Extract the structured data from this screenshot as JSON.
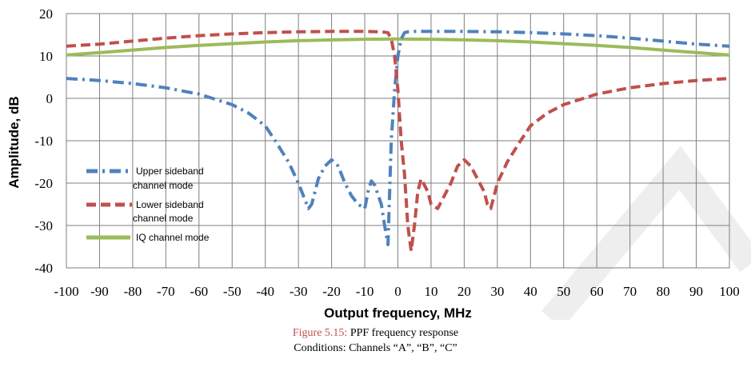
{
  "chart_data": {
    "type": "line",
    "xlabel": "Output frequency, MHz",
    "ylabel": "Amplitude, dB",
    "xlim": [
      -100,
      100
    ],
    "ylim": [
      -40,
      20
    ],
    "xticks": [
      -100,
      -90,
      -80,
      -70,
      -60,
      -50,
      -40,
      -30,
      -20,
      -10,
      0,
      10,
      20,
      30,
      40,
      50,
      60,
      70,
      80,
      90,
      100
    ],
    "yticks": [
      -40,
      -30,
      -20,
      -10,
      0,
      10,
      20
    ],
    "grid": true,
    "legend_position": "bottom-left",
    "series": [
      {
        "name": "Upper sideband channel mode",
        "color": "#4f81bd",
        "dash": "dash-dot",
        "x": [
          -100,
          -90,
          -80,
          -70,
          -60,
          -50,
          -45,
          -40,
          -37,
          -33,
          -30,
          -28,
          -27,
          -26,
          -25,
          -24,
          -22,
          -20,
          -18,
          -16,
          -14,
          -12,
          -10,
          -9,
          -8,
          -7,
          -5,
          -4,
          -3,
          -2,
          -1,
          0,
          1,
          2,
          3,
          5,
          10,
          20,
          30,
          40,
          50,
          60,
          70,
          80,
          90,
          100
        ],
        "y": [
          4.7,
          4.2,
          3.5,
          2.5,
          1,
          -1.5,
          -3.5,
          -6.5,
          -10,
          -15,
          -20,
          -24,
          -26,
          -25,
          -22,
          -19,
          -16,
          -14.5,
          -16,
          -20,
          -23,
          -25,
          -26,
          -22,
          -19.5,
          -20.5,
          -25,
          -30,
          -34.5,
          -10,
          2,
          10,
          14,
          15.5,
          15.7,
          15.8,
          15.8,
          15.8,
          15.7,
          15.5,
          15.2,
          14.8,
          14.2,
          13.5,
          12.8,
          12.3
        ]
      },
      {
        "name": "Lower sideband channel mode",
        "color": "#c0504d",
        "dash": "dash",
        "x": [
          -100,
          -90,
          -80,
          -70,
          -60,
          -50,
          -40,
          -30,
          -20,
          -10,
          -5,
          -3,
          -2,
          -1,
          0,
          1,
          2,
          3,
          4,
          5,
          6,
          7,
          8,
          9,
          10,
          12,
          14,
          16,
          18,
          20,
          22,
          24,
          26,
          27,
          28,
          30,
          33,
          37,
          40,
          45,
          50,
          60,
          70,
          80,
          90,
          100
        ],
        "y": [
          12.3,
          12.8,
          13.5,
          14.2,
          14.8,
          15.2,
          15.5,
          15.7,
          15.8,
          15.8,
          15.7,
          15.5,
          14,
          10,
          2,
          -10,
          -18,
          -30,
          -36,
          -30,
          -22,
          -19,
          -20.5,
          -22,
          -25,
          -26,
          -23,
          -20,
          -16,
          -14.5,
          -16,
          -19,
          -22,
          -25,
          -26,
          -20,
          -15,
          -10,
          -6.5,
          -3.5,
          -1.5,
          1,
          2.5,
          3.5,
          4.2,
          4.7
        ]
      },
      {
        "name": "IQ channel mode",
        "color": "#9bbb59",
        "dash": "solid",
        "x": [
          -100,
          -90,
          -80,
          -70,
          -60,
          -50,
          -40,
          -30,
          -20,
          -10,
          0,
          10,
          20,
          30,
          40,
          50,
          60,
          70,
          80,
          90,
          100
        ],
        "y": [
          10.2,
          10.8,
          11.4,
          12,
          12.5,
          12.9,
          13.3,
          13.6,
          13.8,
          13.95,
          14,
          13.95,
          13.8,
          13.6,
          13.3,
          12.9,
          12.5,
          12,
          11.4,
          10.8,
          10.2
        ]
      }
    ]
  },
  "legend": {
    "upper": [
      "Upper sideband",
      "channel mode"
    ],
    "lower": [
      "Lower sideband",
      "channel mode"
    ],
    "iq": [
      "IQ channel mode"
    ]
  },
  "caption": {
    "figure_number": "Figure 5.15:",
    "figure_title": "PPF frequency response",
    "conditions": "Conditions: Channels “A”, “B”, “C”"
  }
}
